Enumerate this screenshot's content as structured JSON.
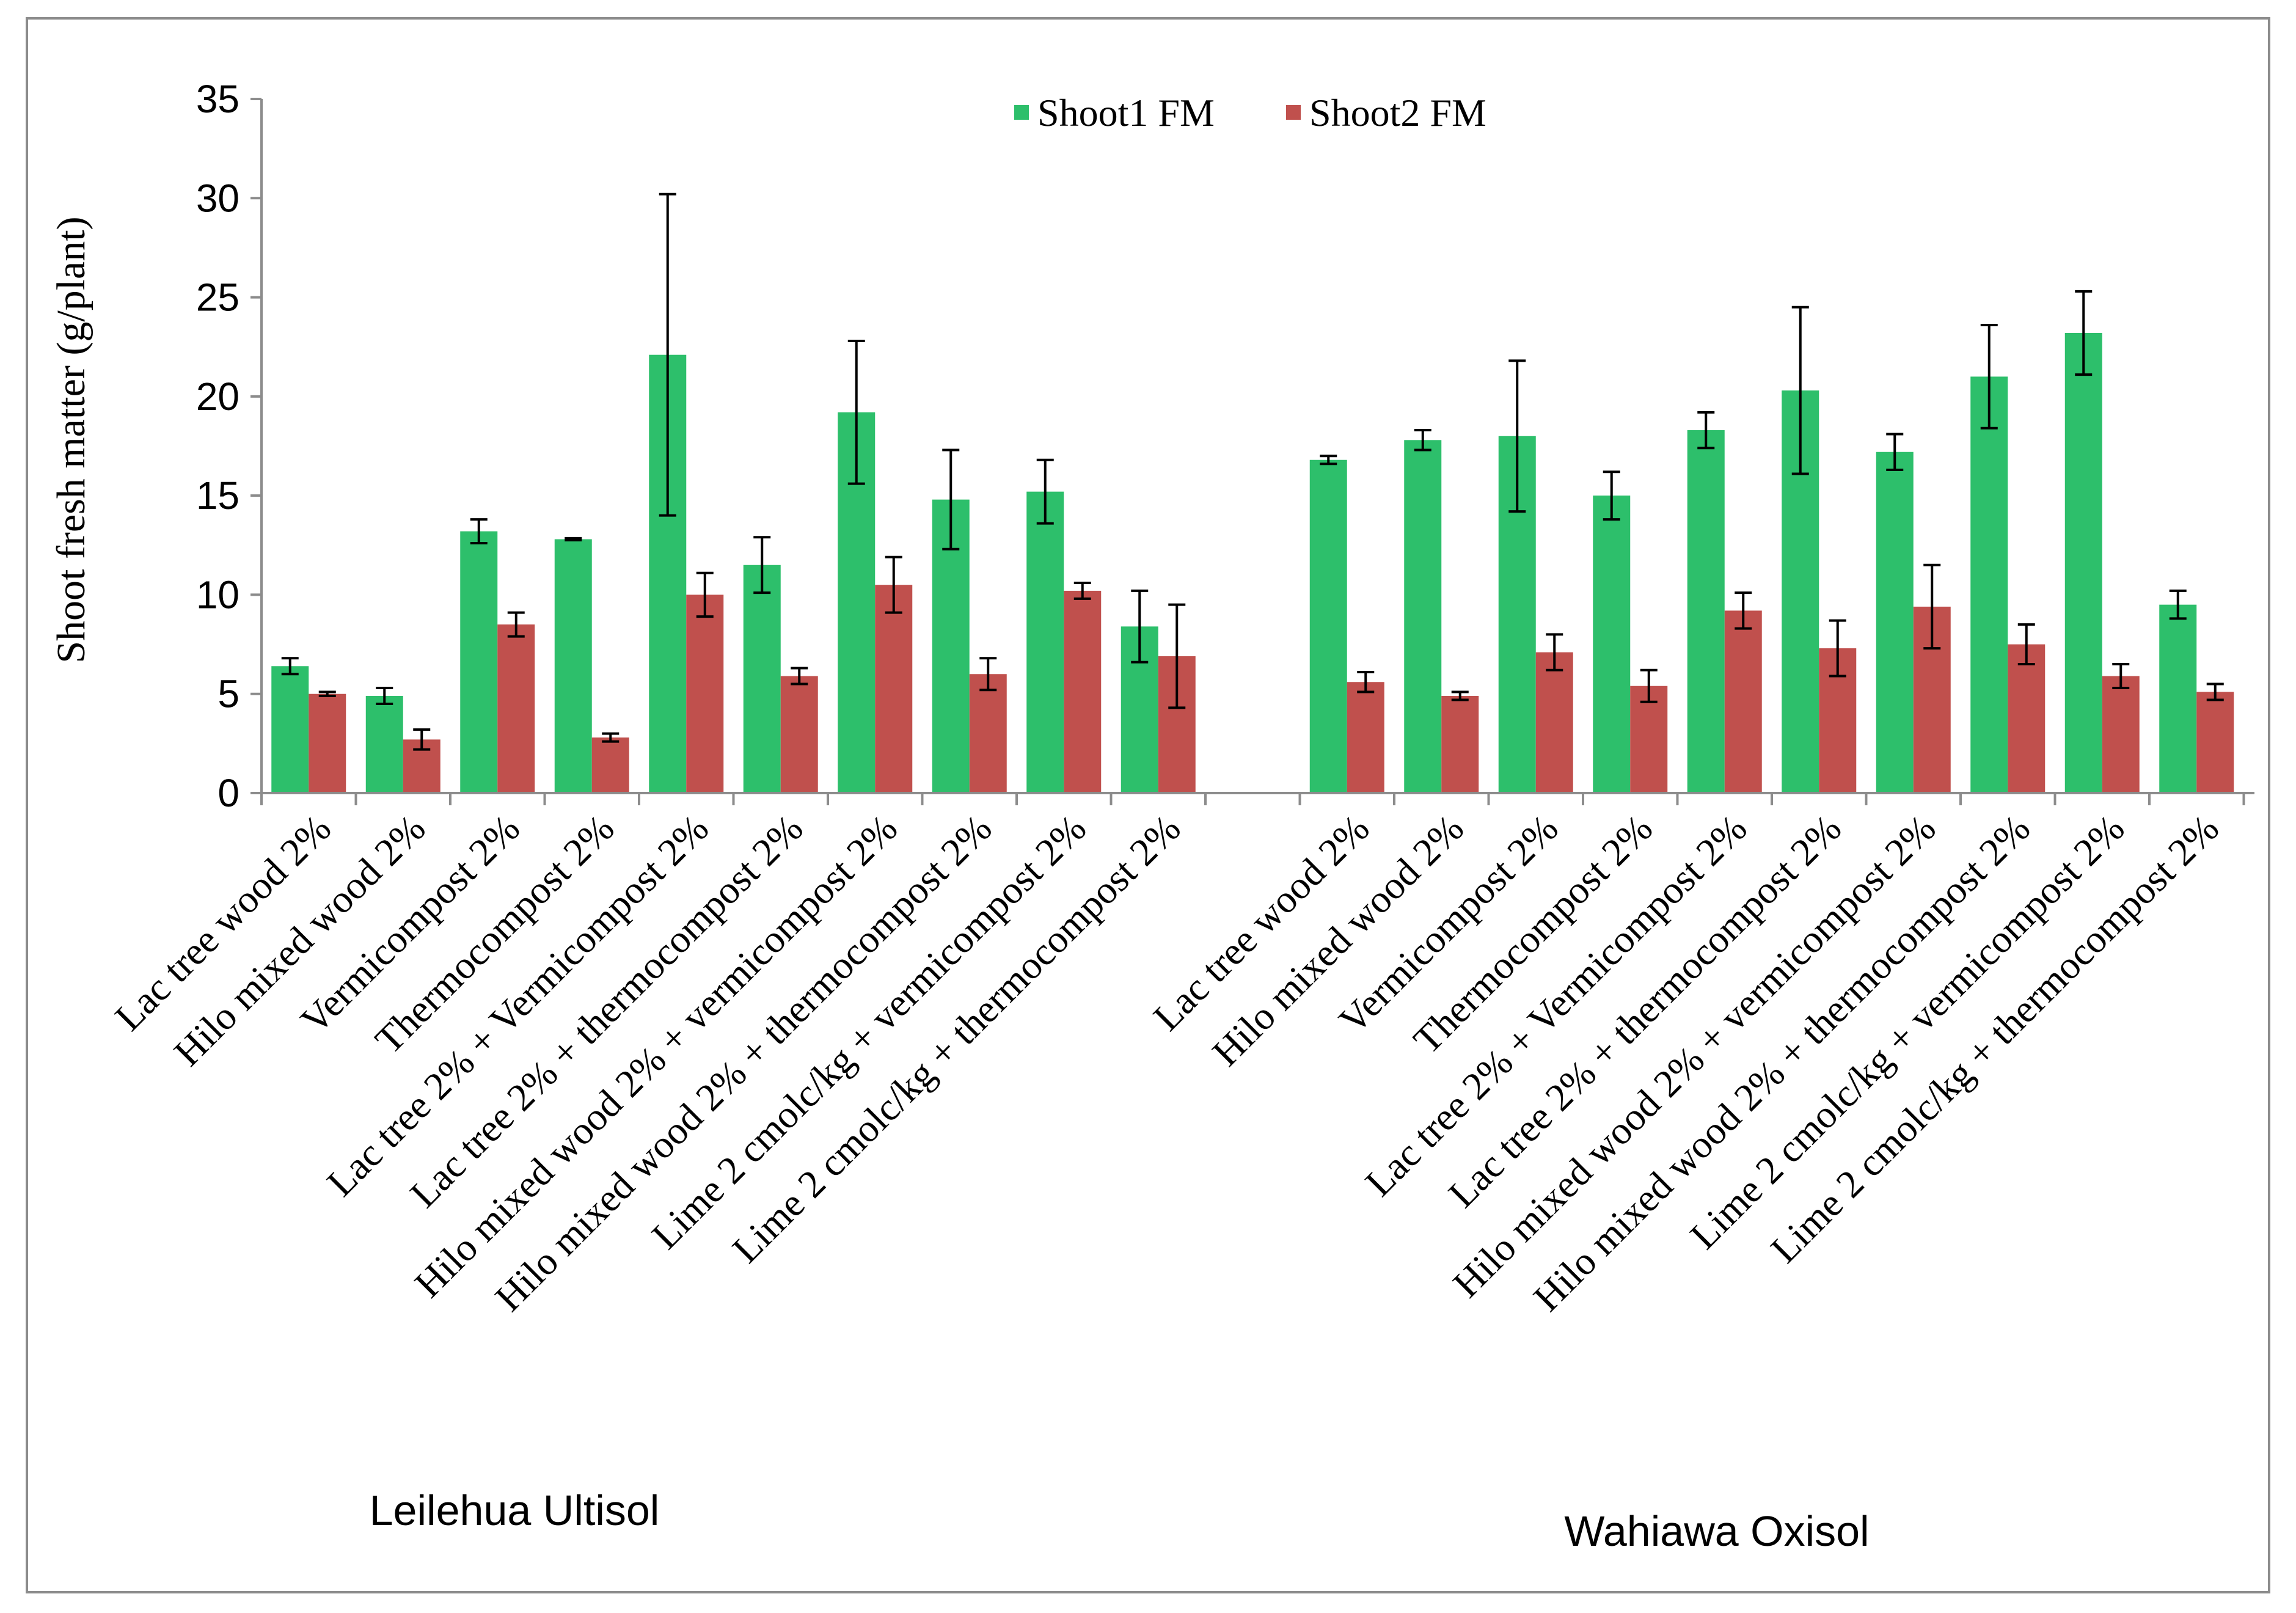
{
  "chart_data": {
    "type": "bar",
    "ylabel": "Shoot fresh matter (g/plant)",
    "ylim": [
      0,
      35
    ],
    "yticks": [
      0,
      5,
      10,
      15,
      20,
      25,
      30,
      35
    ],
    "colors": {
      "shoot1": "#2dbf6b",
      "shoot2": "#c0504d",
      "error": "#000000",
      "axis": "#8c8c8c"
    },
    "legend": {
      "position": "top-center",
      "entries": [
        "Shoot1 FM",
        "Shoot2 FM"
      ]
    },
    "groups": [
      {
        "label": "Leilehua Ultisol",
        "categories": [
          "Lac tree  wood 2%",
          "Hilo mixed wood 2%",
          "Vermicompost 2%",
          "Thermocompost 2%",
          "Lac tree 2% + Vermicompost 2%",
          "Lac tree 2% + thermocompost 2%",
          "Hilo mixed wood 2% + vermicompost 2%",
          "Hilo mixed wood 2% + thermocompost 2%",
          "Lime 2 cmolc/kg + vermicompost 2%",
          "Lime 2 cmolc/kg + thermocompost 2%"
        ],
        "series": [
          {
            "name": "Shoot1 FM",
            "values": [
              6.4,
              4.9,
              13.2,
              12.8,
              22.1,
              11.5,
              19.2,
              14.8,
              15.2,
              8.4
            ],
            "errors": [
              0.4,
              0.4,
              0.6,
              0.05,
              8.1,
              1.4,
              3.6,
              2.5,
              1.6,
              1.8
            ]
          },
          {
            "name": "Shoot2 FM",
            "values": [
              5.0,
              2.7,
              8.5,
              2.8,
              10.0,
              5.9,
              10.5,
              6.0,
              10.2,
              6.9
            ],
            "errors": [
              0.1,
              0.5,
              0.6,
              0.2,
              1.1,
              0.4,
              1.4,
              0.8,
              0.4,
              2.6
            ]
          }
        ]
      },
      {
        "label": "Wahiawa Oxisol",
        "categories": [
          "Lac tree wood 2%",
          "Hilo mixed wood 2%",
          "Vermicompost 2%",
          "Thermocompost 2%",
          "Lac tree 2% + Vermicompost 2%",
          "Lac tree 2% + thermocompost 2%",
          "Hilo mixed wood 2% + vermicompost 2%",
          "Hilo mixed wood 2% + thermocompost 2%",
          "Lime 2 cmolc/kg + vermicompost 2%",
          "Lime 2 cmolc/kg + thermocompost 2%"
        ],
        "series": [
          {
            "name": "Shoot1 FM",
            "values": [
              16.8,
              17.8,
              18.0,
              15.0,
              18.3,
              20.3,
              17.2,
              21.0,
              23.2,
              9.5
            ],
            "errors": [
              0.2,
              0.5,
              3.8,
              1.2,
              0.9,
              4.2,
              0.9,
              2.6,
              2.1,
              0.7
            ]
          },
          {
            "name": "Shoot2 FM",
            "values": [
              5.6,
              4.9,
              7.1,
              5.4,
              9.2,
              7.3,
              9.4,
              7.5,
              5.9,
              5.1
            ],
            "errors": [
              0.5,
              0.2,
              0.9,
              0.8,
              0.9,
              1.4,
              2.1,
              1.0,
              0.6,
              0.4
            ]
          }
        ]
      }
    ]
  }
}
